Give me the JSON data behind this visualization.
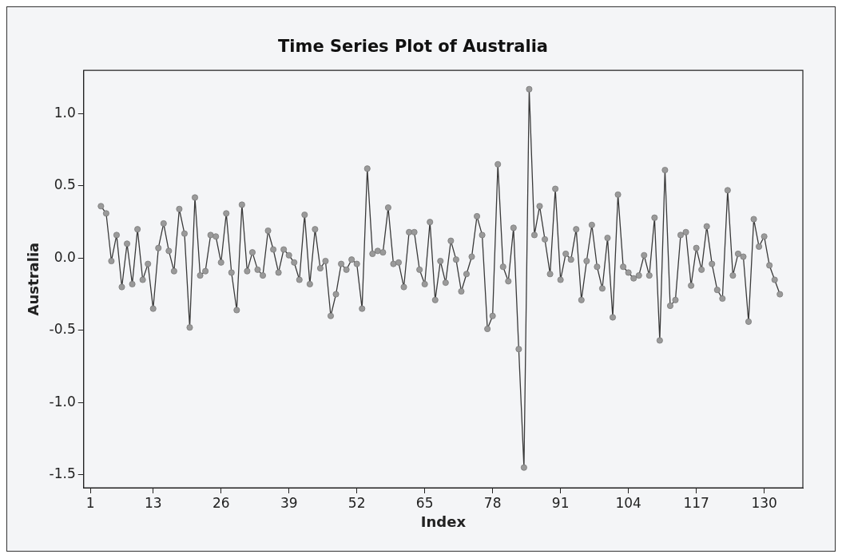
{
  "chart_data": {
    "type": "line",
    "title": "Time Series Plot of Australia",
    "xlabel": "Index",
    "ylabel": "Australia",
    "x": [
      3,
      4,
      5,
      6,
      7,
      8,
      9,
      10,
      11,
      12,
      13,
      14,
      15,
      16,
      17,
      18,
      19,
      20,
      21,
      22,
      23,
      24,
      25,
      26,
      27,
      28,
      29,
      30,
      31,
      32,
      33,
      34,
      35,
      36,
      37,
      38,
      39,
      40,
      41,
      42,
      43,
      44,
      45,
      46,
      47,
      48,
      49,
      50,
      51,
      52,
      53,
      54,
      55,
      56,
      57,
      58,
      59,
      60,
      61,
      62,
      63,
      64,
      65,
      66,
      67,
      68,
      69,
      70,
      71,
      72,
      73,
      74,
      75,
      76,
      77,
      78,
      79,
      80,
      81,
      82,
      83,
      84,
      85,
      86,
      87,
      88,
      89,
      90,
      91,
      92,
      93,
      94,
      95,
      96,
      97,
      98,
      99,
      100,
      101,
      102,
      103,
      104,
      105,
      106,
      107,
      108,
      109,
      110,
      111,
      112,
      113,
      114,
      115,
      116,
      117,
      118,
      119,
      120,
      121,
      122,
      123,
      124,
      125,
      126,
      127,
      128,
      129,
      130,
      131,
      132,
      133
    ],
    "series": [
      {
        "color": "#3a3a3a",
        "values": [
          0.36,
          0.31,
          -0.02,
          0.16,
          -0.2,
          0.1,
          -0.18,
          0.2,
          -0.15,
          -0.04,
          -0.35,
          0.07,
          0.24,
          0.05,
          -0.09,
          0.34,
          0.17,
          -0.48,
          0.42,
          -0.12,
          -0.09,
          0.16,
          0.15,
          -0.03,
          0.31,
          -0.1,
          -0.36,
          0.37,
          -0.09,
          0.04,
          -0.08,
          -0.12,
          0.19,
          0.06,
          -0.1,
          0.06,
          0.02,
          -0.03,
          -0.15,
          0.3,
          -0.18,
          0.2,
          -0.07,
          -0.02,
          -0.4,
          -0.25,
          -0.04,
          -0.08,
          -0.01,
          -0.04,
          -0.35,
          0.62,
          0.03,
          0.05,
          0.04,
          0.35,
          -0.04,
          -0.03,
          -0.2,
          0.18,
          0.18,
          -0.08,
          -0.18,
          0.25,
          -0.29,
          -0.02,
          -0.17,
          0.12,
          -0.01,
          -0.23,
          -0.11,
          0.01,
          0.29,
          0.16,
          -0.49,
          -0.4,
          0.65,
          -0.06,
          -0.16,
          0.21,
          -0.63,
          -1.45,
          1.17,
          0.16,
          0.36,
          0.13,
          -0.11,
          0.48,
          -0.15,
          0.03,
          -0.01,
          0.2,
          -0.29,
          -0.02,
          0.23,
          -0.06,
          -0.21,
          0.14,
          -0.41,
          0.44,
          -0.06,
          -0.1,
          -0.14,
          -0.12,
          0.02,
          -0.12,
          0.28,
          -0.57,
          0.61,
          -0.33,
          -0.29,
          0.16,
          0.18,
          -0.19,
          0.07,
          -0.08,
          0.22,
          -0.04,
          -0.22,
          -0.28,
          0.47,
          -0.12,
          0.03,
          0.01,
          -0.44,
          0.27,
          0.08,
          0.15,
          -0.05,
          -0.15,
          -0.25
        ]
      }
    ],
    "xlim": [
      -0.3,
      137.4
    ],
    "xticks": [
      1,
      13,
      26,
      39,
      52,
      65,
      78,
      91,
      104,
      117,
      130
    ],
    "ylim": [
      -1.59,
      1.3
    ],
    "yticks": [
      -1.5,
      {
        "value": -1,
        "label": "-1.0"
      },
      -0.5,
      {
        "value": 0,
        "label": "0.0"
      },
      0.5,
      {
        "value": 1,
        "label": "1.0"
      }
    ],
    "grid": false,
    "legend": false,
    "marker": "circle",
    "line_style": "solid"
  }
}
